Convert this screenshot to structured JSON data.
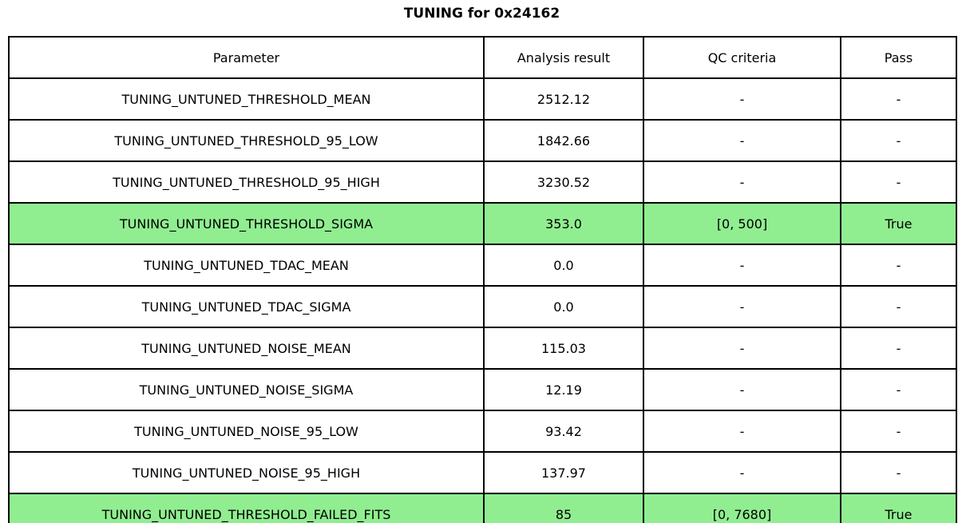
{
  "colors": {
    "highlight_green": "#90EE90",
    "border": "#000000",
    "background": "#ffffff"
  },
  "chart_data": {
    "type": "table",
    "title": "TUNING for 0x24162",
    "columns": [
      "Parameter",
      "Analysis result",
      "QC criteria",
      "Pass"
    ],
    "rows": [
      {
        "parameter": "TUNING_UNTUNED_THRESHOLD_MEAN",
        "analysis_result": "2512.12",
        "qc_criteria": "-",
        "pass": "-",
        "highlighted": false
      },
      {
        "parameter": "TUNING_UNTUNED_THRESHOLD_95_LOW",
        "analysis_result": "1842.66",
        "qc_criteria": "-",
        "pass": "-",
        "highlighted": false
      },
      {
        "parameter": "TUNING_UNTUNED_THRESHOLD_95_HIGH",
        "analysis_result": "3230.52",
        "qc_criteria": "-",
        "pass": "-",
        "highlighted": false
      },
      {
        "parameter": "TUNING_UNTUNED_THRESHOLD_SIGMA",
        "analysis_result": "353.0",
        "qc_criteria": "[0, 500]",
        "pass": "True",
        "highlighted": true
      },
      {
        "parameter": "TUNING_UNTUNED_TDAC_MEAN",
        "analysis_result": "0.0",
        "qc_criteria": "-",
        "pass": "-",
        "highlighted": false
      },
      {
        "parameter": "TUNING_UNTUNED_TDAC_SIGMA",
        "analysis_result": "0.0",
        "qc_criteria": "-",
        "pass": "-",
        "highlighted": false
      },
      {
        "parameter": "TUNING_UNTUNED_NOISE_MEAN",
        "analysis_result": "115.03",
        "qc_criteria": "-",
        "pass": "-",
        "highlighted": false
      },
      {
        "parameter": "TUNING_UNTUNED_NOISE_SIGMA",
        "analysis_result": "12.19",
        "qc_criteria": "-",
        "pass": "-",
        "highlighted": false
      },
      {
        "parameter": "TUNING_UNTUNED_NOISE_95_LOW",
        "analysis_result": "93.42",
        "qc_criteria": "-",
        "pass": "-",
        "highlighted": false
      },
      {
        "parameter": "TUNING_UNTUNED_NOISE_95_HIGH",
        "analysis_result": "137.97",
        "qc_criteria": "-",
        "pass": "-",
        "highlighted": false
      },
      {
        "parameter": "TUNING_UNTUNED_THRESHOLD_FAILED_FITS",
        "analysis_result": "85",
        "qc_criteria": "[0, 7680]",
        "pass": "True",
        "highlighted": true
      }
    ]
  }
}
